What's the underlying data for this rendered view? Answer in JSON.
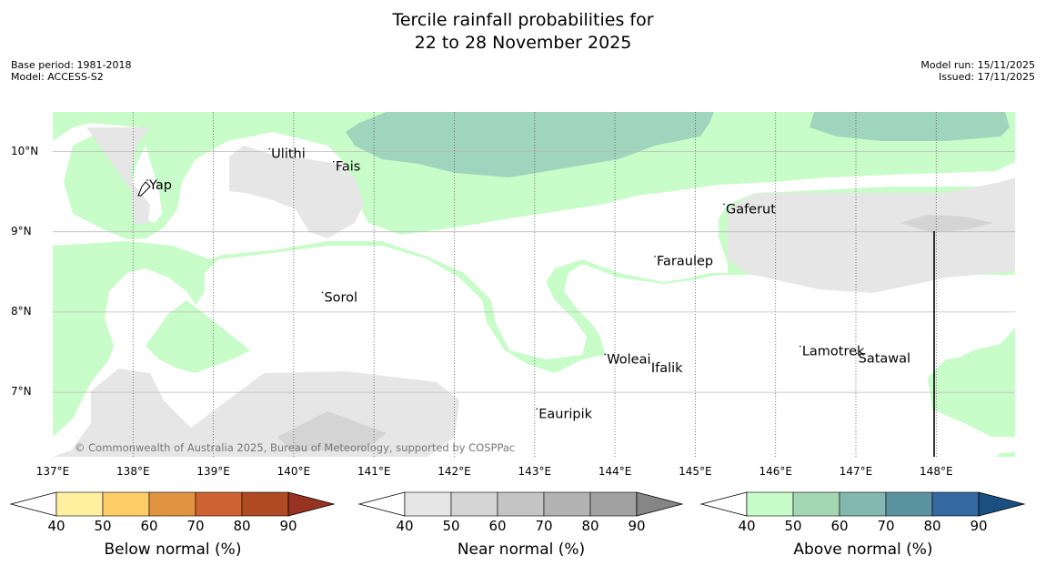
{
  "title": {
    "line1": "Tercile rainfall probabilities for",
    "line2": "22 to 28 November 2025"
  },
  "meta_left": {
    "base_period": "Base period: 1981-2018",
    "model": "Model: ACCESS-S2"
  },
  "meta_right": {
    "model_run": "Model run: 15/11/2025",
    "issued": "Issued: 17/11/2025"
  },
  "map": {
    "lon_range": [
      137,
      149
    ],
    "lat_range": [
      6.3,
      10.5
    ],
    "lon_ticks": [
      "137°E",
      "138°E",
      "139°E",
      "140°E",
      "141°E",
      "142°E",
      "143°E",
      "144°E",
      "145°E",
      "146°E",
      "147°E",
      "148°E"
    ],
    "lat_ticks": [
      "10°N",
      "9°N",
      "8°N",
      "7°N"
    ],
    "copyright": "© Commonwealth of Australia 2025, Bureau of Meteorology, supported by COSPPac",
    "places": [
      {
        "name": "Yap",
        "lon": 138.2,
        "lat": 9.53
      },
      {
        "name": "Ulithi",
        "lon": 139.72,
        "lat": 9.92
      },
      {
        "name": "Fais",
        "lon": 140.52,
        "lat": 9.76
      },
      {
        "name": "Gaferut",
        "lon": 145.38,
        "lat": 9.23
      },
      {
        "name": "Faraulep",
        "lon": 144.52,
        "lat": 8.58
      },
      {
        "name": "Sorol",
        "lon": 140.38,
        "lat": 8.13
      },
      {
        "name": "Lamotrek",
        "lon": 146.33,
        "lat": 7.46
      },
      {
        "name": "Woleai",
        "lon": 143.9,
        "lat": 7.36
      },
      {
        "name": "Ifalik",
        "lon": 144.45,
        "lat": 7.25
      },
      {
        "name": "Satawal",
        "lon": 147.03,
        "lat": 7.37
      },
      {
        "name": "Eauripik",
        "lon": 143.05,
        "lat": 6.68
      }
    ],
    "colors": {
      "ocean": "#ffffff",
      "above_normal_50": "#c8fcc8",
      "above_normal_60": "#9fd4bd",
      "near_normal_50": "#e6e6e6",
      "near_normal_60": "#d4d4d4"
    }
  },
  "colorbars": [
    {
      "title": "Below normal (%)",
      "ticks": [
        "40",
        "50",
        "60",
        "70",
        "80",
        "90"
      ],
      "colors": [
        "#fff0a0",
        "#fdcc66",
        "#e09340",
        "#cf6233",
        "#af4a25",
        "#983322"
      ]
    },
    {
      "title": "Near normal (%)",
      "ticks": [
        "40",
        "50",
        "60",
        "70",
        "80",
        "90"
      ],
      "colors": [
        "#e6e6e6",
        "#d4d4d4",
        "#c4c4c4",
        "#b3b3b3",
        "#a1a1a1",
        "#868686"
      ]
    },
    {
      "title": "Above normal (%)",
      "ticks": [
        "40",
        "50",
        "60",
        "70",
        "80",
        "90"
      ],
      "colors": [
        "#c8fcc8",
        "#a4d6b4",
        "#82b8b0",
        "#5b93a0",
        "#3468a0",
        "#1a4f82"
      ]
    }
  ]
}
